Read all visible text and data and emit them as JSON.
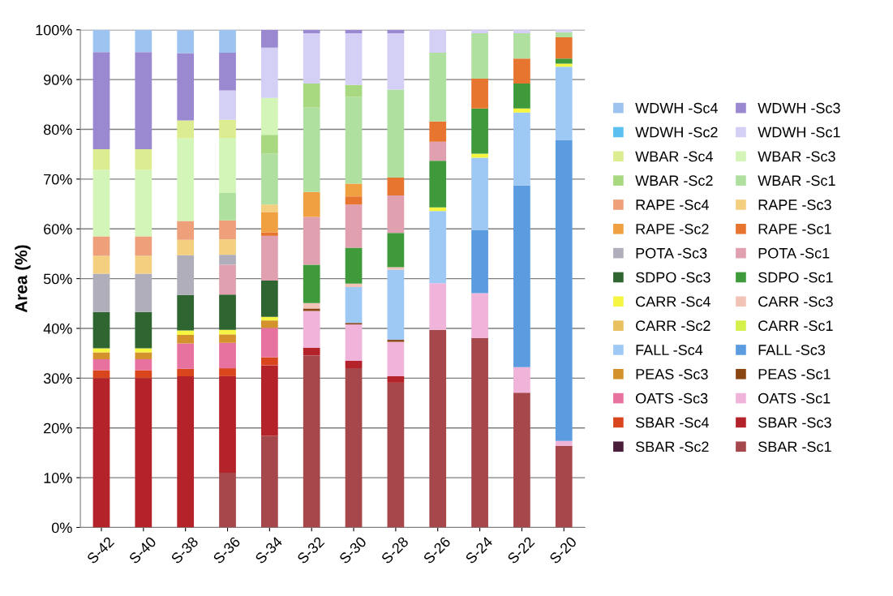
{
  "chart_data": {
    "type": "bar",
    "stacked": true,
    "ylabel": "Area (%)",
    "categories": [
      "S-42",
      "S-40",
      "S-38",
      "S-36",
      "S-34",
      "S-32",
      "S-30",
      "S-28",
      "S-26",
      "S-24",
      "S-22",
      "S-20"
    ],
    "ylim": [
      0,
      100
    ],
    "yticks": [
      {
        "value": 0,
        "label": "0%"
      },
      {
        "value": 10,
        "label": "10%"
      },
      {
        "value": 20,
        "label": "20%"
      },
      {
        "value": 30,
        "label": "30%"
      },
      {
        "value": 40,
        "label": "40%"
      },
      {
        "value": 50,
        "label": "50%"
      },
      {
        "value": 60,
        "label": "60%"
      },
      {
        "value": 70,
        "label": "70%"
      },
      {
        "value": 80,
        "label": "80%"
      },
      {
        "value": 90,
        "label": "90%"
      },
      {
        "value": 100,
        "label": "100%"
      }
    ],
    "grid": "y",
    "legend": "right",
    "series": [
      {
        "name": "SBAR -Sc1",
        "color": "#a5474b",
        "values": [
          0,
          0,
          0,
          11.0,
          18.4,
          34.6,
          32.0,
          29.1,
          39.7,
          38.1,
          27.1,
          16.4
        ]
      },
      {
        "name": "SBAR -Sc2",
        "color": "#4a1e3a",
        "values": [
          0,
          0,
          0,
          0,
          0,
          0,
          0,
          0,
          0,
          0,
          0,
          0
        ]
      },
      {
        "name": "SBAR -Sc3",
        "color": "#b5232a",
        "values": [
          30.0,
          30.0,
          30.4,
          19.4,
          14.2,
          1.5,
          1.5,
          1.3,
          0,
          0,
          0,
          0
        ]
      },
      {
        "name": "SBAR -Sc4",
        "color": "#d9461e",
        "values": [
          1.6,
          1.6,
          1.5,
          1.6,
          1.6,
          0,
          0,
          0,
          0,
          0,
          0,
          0
        ]
      },
      {
        "name": "OATS -Sc1",
        "color": "#f0b3d9",
        "values": [
          0,
          0,
          0,
          0,
          0,
          7.4,
          7.3,
          6.9,
          9.4,
          9.0,
          5.1,
          1.0
        ]
      },
      {
        "name": "OATS -Sc3",
        "color": "#e8729f",
        "values": [
          2.2,
          2.2,
          5.1,
          5.1,
          5.9,
          0,
          0,
          0,
          0,
          0,
          0,
          0
        ]
      },
      {
        "name": "PEAS -Sc1",
        "color": "#8b4513",
        "values": [
          0,
          0,
          0,
          0,
          0,
          0.5,
          0.3,
          0.4,
          0,
          0,
          0,
          0
        ]
      },
      {
        "name": "PEAS -Sc3",
        "color": "#d4922c",
        "values": [
          1.4,
          1.4,
          1.7,
          1.7,
          1.5,
          0,
          0,
          0,
          0,
          0,
          0,
          0
        ]
      },
      {
        "name": "FALL -Sc3",
        "color": "#5b9bdf",
        "values": [
          0,
          0,
          0,
          0,
          0,
          0,
          0,
          0,
          0,
          12.7,
          36.5,
          60.5
        ]
      },
      {
        "name": "FALL -Sc4",
        "color": "#9ec9f5",
        "values": [
          0,
          0,
          0,
          0,
          0,
          0,
          7.2,
          14.1,
          14.5,
          14.5,
          14.7,
          14.7
        ]
      },
      {
        "name": "CARR -Sc1",
        "color": "#d4f04a",
        "values": [
          0,
          0,
          0,
          0,
          0,
          0,
          0,
          0,
          0,
          0,
          0,
          0
        ]
      },
      {
        "name": "CARR -Sc2",
        "color": "#e8c060",
        "values": [
          0,
          0,
          0,
          0,
          0,
          0,
          0,
          0,
          0,
          0,
          0,
          0
        ]
      },
      {
        "name": "CARR -Sc3",
        "color": "#f2c4b8",
        "values": [
          0,
          0,
          0,
          0,
          0,
          1.1,
          0.7,
          0.5,
          0,
          0,
          0,
          0
        ]
      },
      {
        "name": "CARR -Sc4",
        "color": "#f5f542",
        "values": [
          0.8,
          0.8,
          0.9,
          0.9,
          0.7,
          0,
          0,
          0,
          0.7,
          0.8,
          0.8,
          0.6
        ]
      },
      {
        "name": "SDPO -Sc1",
        "color": "#3e9a3a",
        "values": [
          0,
          0,
          0,
          0,
          0,
          7.7,
          7.2,
          6.9,
          9.4,
          9.1,
          5.0,
          1.0
        ]
      },
      {
        "name": "SDPO -Sc3",
        "color": "#2f6530",
        "values": [
          7.3,
          7.3,
          7.1,
          7.1,
          7.3,
          0,
          0,
          0,
          0,
          0,
          0,
          0
        ]
      },
      {
        "name": "POTA -Sc1",
        "color": "#e0a0b0",
        "values": [
          0,
          0,
          0,
          6.0,
          9.0,
          9.6,
          8.7,
          7.5,
          3.8,
          0,
          0,
          0
        ]
      },
      {
        "name": "POTA -Sc3",
        "color": "#b0aebb",
        "values": [
          7.7,
          7.7,
          8.0,
          2.0,
          0,
          0,
          0,
          0,
          0,
          0,
          0,
          0
        ]
      },
      {
        "name": "RAPE -Sc1",
        "color": "#e8752f",
        "values": [
          0,
          0,
          0,
          0,
          0.7,
          0,
          1.6,
          3.6,
          4.1,
          6.0,
          5.0,
          4.3
        ]
      },
      {
        "name": "RAPE -Sc2",
        "color": "#f0a040",
        "values": [
          0,
          0,
          0,
          0,
          4.1,
          5.0,
          2.6,
          0,
          0,
          0,
          0,
          0
        ]
      },
      {
        "name": "RAPE -Sc3",
        "color": "#f3cf7f",
        "values": [
          3.6,
          3.6,
          3.1,
          3.1,
          1.5,
          0,
          0,
          0,
          0,
          0,
          0,
          0
        ]
      },
      {
        "name": "RAPE -Sc4",
        "color": "#eda07a",
        "values": [
          3.9,
          3.9,
          3.8,
          3.8,
          0,
          0,
          0,
          0,
          0,
          0,
          0,
          0
        ]
      },
      {
        "name": "WBAR -Sc1",
        "color": "#b0e0a0",
        "values": [
          0,
          0,
          0,
          5.5,
          10.2,
          17.0,
          17.4,
          17.7,
          13.8,
          9.1,
          5.1,
          1.0
        ]
      },
      {
        "name": "WBAR -Sc2",
        "color": "#a8d880",
        "values": [
          0,
          0,
          0,
          0,
          3.8,
          4.8,
          2.4,
          0,
          0,
          0,
          0,
          0
        ]
      },
      {
        "name": "WBAR -Sc3",
        "color": "#d4f5b8",
        "values": [
          13.4,
          13.4,
          16.6,
          11.1,
          7.4,
          0,
          0,
          0,
          0,
          0,
          0,
          0
        ]
      },
      {
        "name": "WBAR -Sc4",
        "color": "#dcec90",
        "values": [
          4.1,
          4.1,
          3.6,
          3.6,
          0,
          0,
          0,
          0,
          0,
          0,
          0,
          0
        ]
      },
      {
        "name": "WDWH -Sc1",
        "color": "#d4d0f5",
        "values": [
          0,
          0,
          0,
          5.9,
          10.1,
          10.1,
          10.4,
          11.3,
          4.6,
          0.7,
          0.7,
          0.5
        ]
      },
      {
        "name": "WDWH -Sc2",
        "color": "#5bc0f0",
        "values": [
          0,
          0,
          0,
          0,
          0,
          0,
          0,
          0,
          0,
          0,
          0,
          0
        ]
      },
      {
        "name": "WDWH -Sc3",
        "color": "#9a88d0",
        "values": [
          19.5,
          19.5,
          13.5,
          7.6,
          3.6,
          0.7,
          0.7,
          0.7,
          0,
          0,
          0,
          0
        ]
      },
      {
        "name": "WDWH -Sc4",
        "color": "#9dc3f0",
        "values": [
          4.5,
          4.5,
          4.6,
          4.6,
          0,
          0,
          0,
          0,
          0,
          0,
          0,
          0
        ]
      }
    ]
  }
}
